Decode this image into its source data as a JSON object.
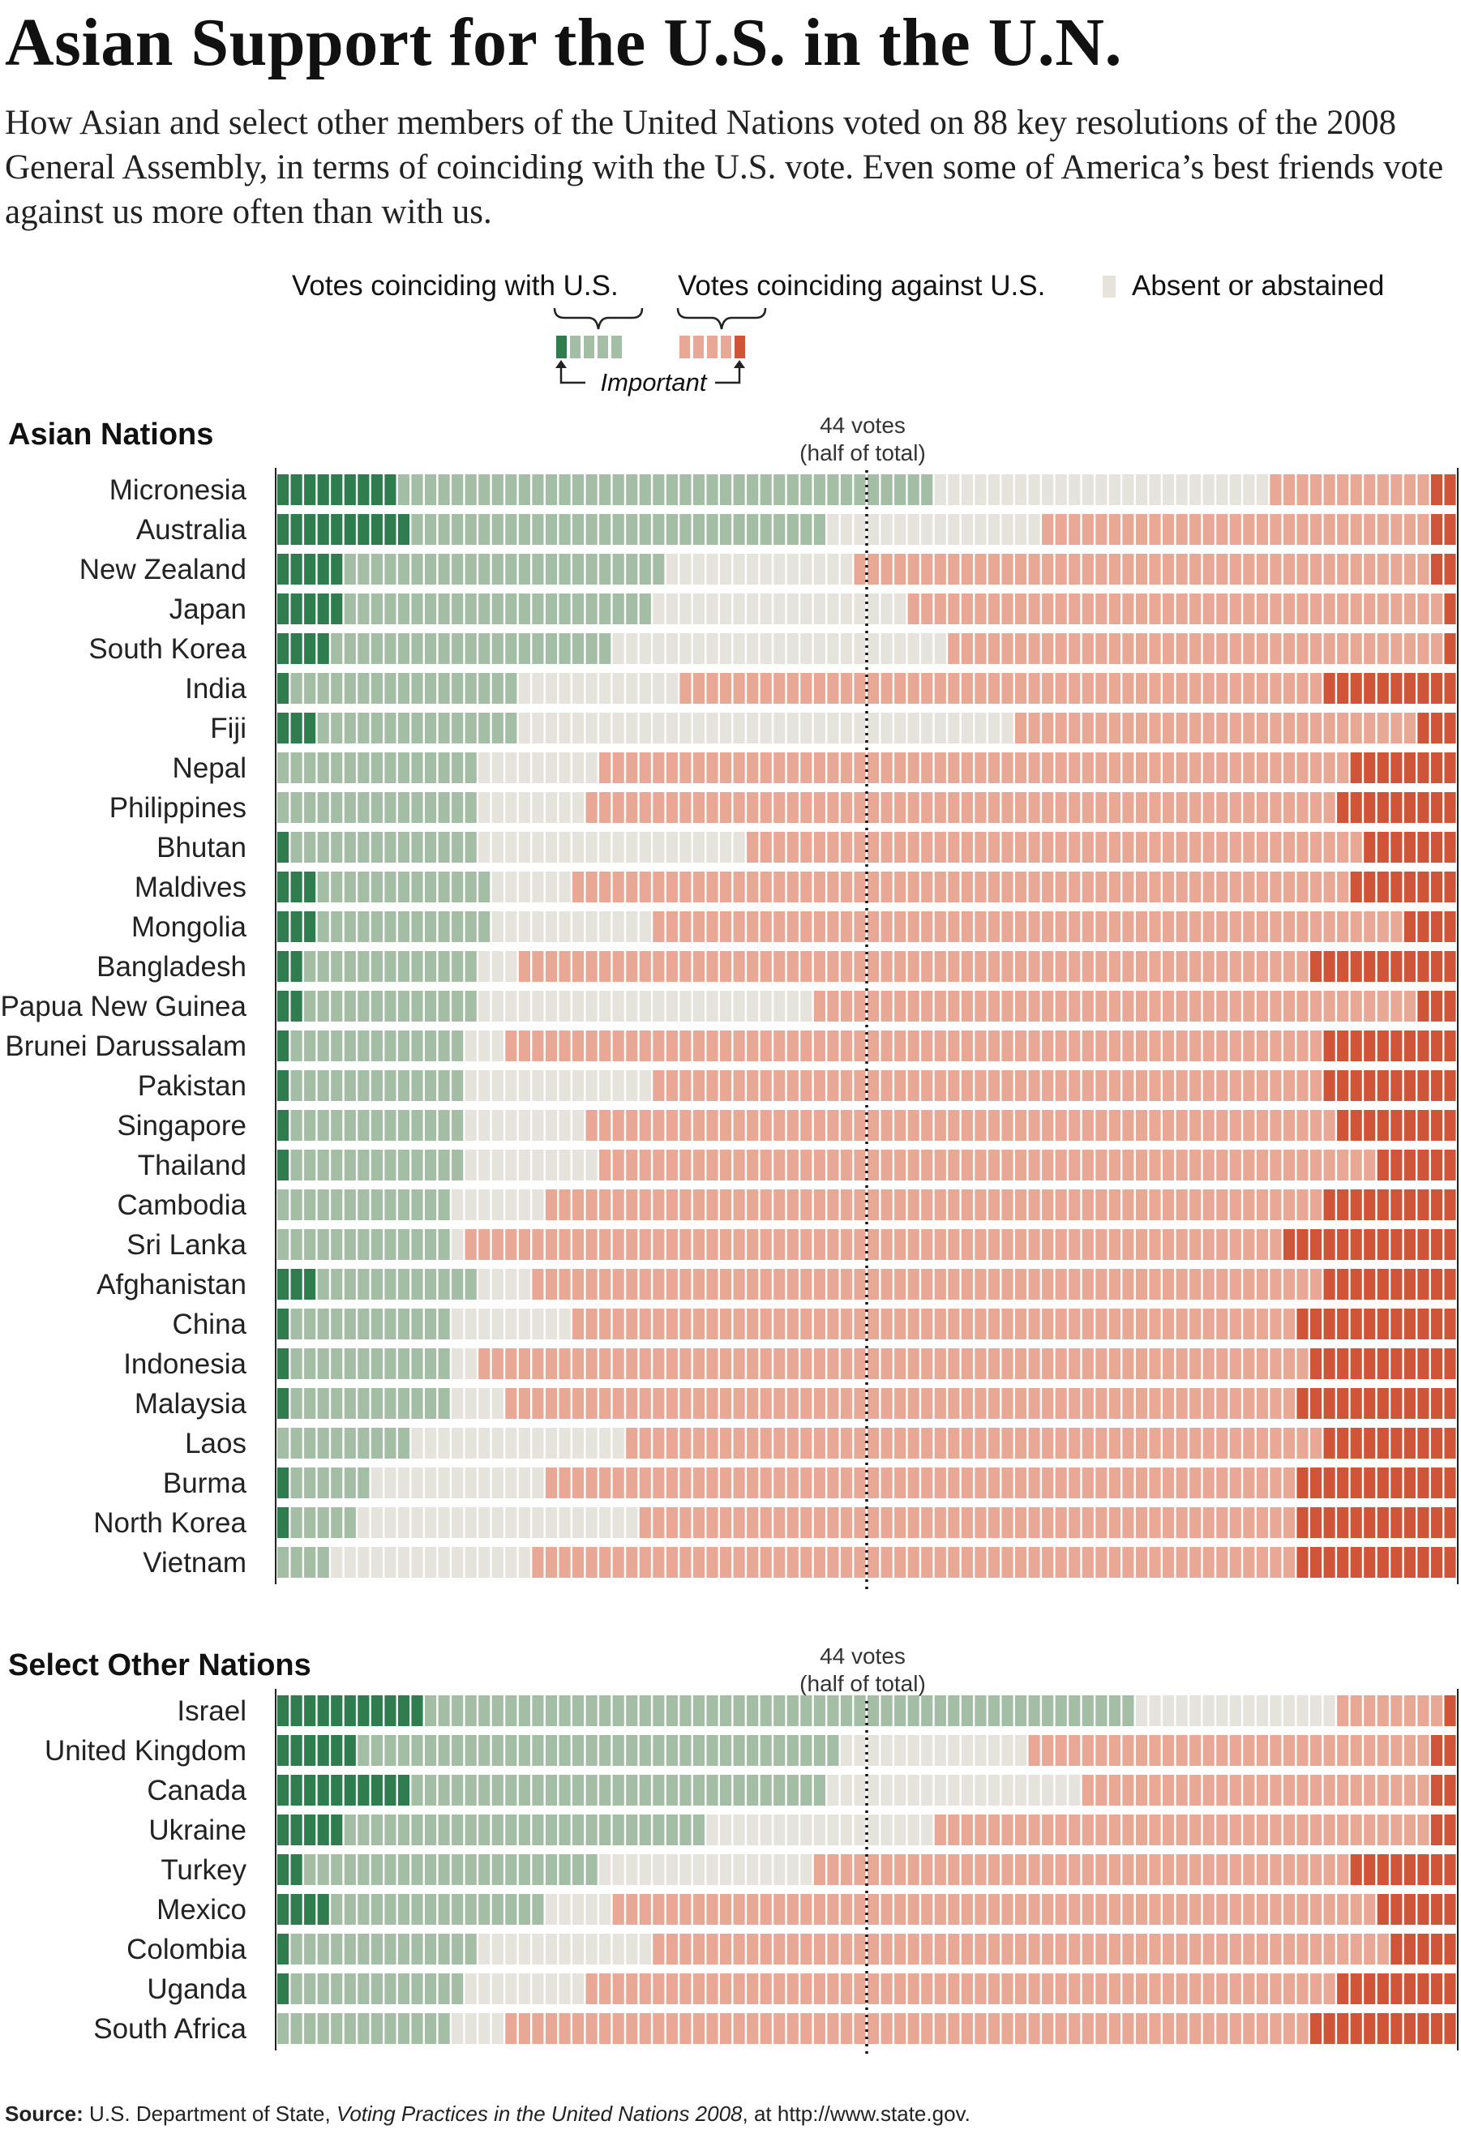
{
  "title": "Asian Support for the U.S. in the U.N.",
  "subtitle": "How Asian and select other members of the United Nations voted on 88 key resolutions of the 2008 General Assembly, in terms of coinciding with the U.S. vote. Even some of America’s best friends vote against us more often than with us.",
  "legend": {
    "with_label": "Votes coinciding with U.S.",
    "against_label": "Votes coinciding against U.S.",
    "absent_label": "Absent or abstained",
    "important_label": "Important"
  },
  "midline_label": {
    "line1": "44 votes",
    "line2": "(half of total)"
  },
  "source": {
    "prefix": "Source:",
    "text_a": " U.S. Department of State, ",
    "text_italic": "Voting Practices in the United Nations 2008",
    "text_b": ", at http://www.state.gov."
  },
  "colors": {
    "with_important": "#2f7d4f",
    "with": "#a3bea5",
    "absent": "#e5e3dc",
    "against": "#e9a896",
    "against_important": "#d05538"
  },
  "chart_data": {
    "type": "bar",
    "orientation": "horizontal",
    "stacked": true,
    "total_votes": 88,
    "midline_votes": 44,
    "segment_order": [
      "with_important",
      "with",
      "absent",
      "against",
      "against_important"
    ],
    "groups": [
      {
        "name": "Asian Nations",
        "rows": [
          {
            "country": "Micronesia",
            "values": [
              9,
              40,
              25,
              12,
              2
            ]
          },
          {
            "country": "Australia",
            "values": [
              10,
              31,
              16,
              29,
              2
            ]
          },
          {
            "country": "New Zealand",
            "values": [
              5,
              24,
              14,
              43,
              2
            ]
          },
          {
            "country": "Japan",
            "values": [
              5,
              23,
              19,
              40,
              1
            ]
          },
          {
            "country": "South Korea",
            "values": [
              4,
              21,
              25,
              37,
              1
            ]
          },
          {
            "country": "India",
            "values": [
              1,
              17,
              12,
              48,
              10
            ]
          },
          {
            "country": "Fiji",
            "values": [
              3,
              15,
              37,
              30,
              3
            ]
          },
          {
            "country": "Nepal",
            "values": [
              0,
              15,
              9,
              56,
              8
            ]
          },
          {
            "country": "Philippines",
            "values": [
              0,
              15,
              8,
              56,
              9
            ]
          },
          {
            "country": "Bhutan",
            "values": [
              1,
              14,
              20,
              46,
              7
            ]
          },
          {
            "country": "Maldives",
            "values": [
              3,
              13,
              6,
              58,
              8
            ]
          },
          {
            "country": "Mongolia",
            "values": [
              3,
              13,
              12,
              56,
              4
            ]
          },
          {
            "country": "Bangladesh",
            "values": [
              2,
              13,
              3,
              59,
              11
            ]
          },
          {
            "country": "Papua New Guinea",
            "values": [
              2,
              13,
              25,
              45,
              3
            ]
          },
          {
            "country": "Brunei Darussalam",
            "values": [
              1,
              13,
              3,
              61,
              10
            ]
          },
          {
            "country": "Pakistan",
            "values": [
              1,
              13,
              14,
              50,
              10
            ]
          },
          {
            "country": "Singapore",
            "values": [
              1,
              13,
              9,
              56,
              9
            ]
          },
          {
            "country": "Thailand",
            "values": [
              1,
              13,
              10,
              58,
              6
            ]
          },
          {
            "country": "Cambodia",
            "values": [
              0,
              13,
              7,
              58,
              10
            ]
          },
          {
            "country": "Sri Lanka",
            "values": [
              0,
              13,
              1,
              61,
              13
            ]
          },
          {
            "country": "Afghanistan",
            "values": [
              3,
              12,
              4,
              59,
              10
            ]
          },
          {
            "country": "China",
            "values": [
              1,
              12,
              9,
              54,
              12
            ]
          },
          {
            "country": "Indonesia",
            "values": [
              1,
              12,
              2,
              62,
              11
            ]
          },
          {
            "country": "Malaysia",
            "values": [
              1,
              12,
              4,
              59,
              12
            ]
          },
          {
            "country": "Laos",
            "values": [
              0,
              10,
              16,
              52,
              10
            ]
          },
          {
            "country": "Burma",
            "values": [
              1,
              6,
              13,
              56,
              12
            ]
          },
          {
            "country": "North Korea",
            "values": [
              1,
              5,
              21,
              49,
              12
            ]
          },
          {
            "country": "Vietnam",
            "values": [
              0,
              4,
              15,
              57,
              12
            ]
          }
        ]
      },
      {
        "name": "Select Other Nations",
        "rows": [
          {
            "country": "Israel",
            "values": [
              11,
              53,
              15,
              8,
              1
            ]
          },
          {
            "country": "United Kingdom",
            "values": [
              6,
              36,
              14,
              30,
              2
            ]
          },
          {
            "country": "Canada",
            "values": [
              10,
              31,
              19,
              26,
              2
            ]
          },
          {
            "country": "Ukraine",
            "values": [
              5,
              27,
              17,
              37,
              2
            ]
          },
          {
            "country": "Turkey",
            "values": [
              2,
              22,
              16,
              40,
              8
            ]
          },
          {
            "country": "Mexico",
            "values": [
              4,
              16,
              5,
              57,
              6
            ]
          },
          {
            "country": "Colombia",
            "values": [
              1,
              14,
              13,
              55,
              5
            ]
          },
          {
            "country": "Uganda",
            "values": [
              1,
              13,
              9,
              56,
              9
            ]
          },
          {
            "country": "South Africa",
            "values": [
              0,
              13,
              4,
              60,
              11
            ]
          }
        ]
      }
    ]
  }
}
